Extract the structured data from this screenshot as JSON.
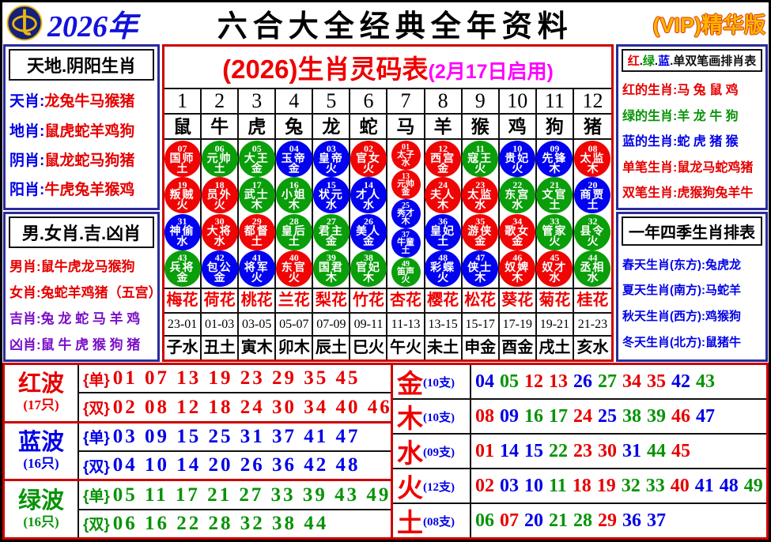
{
  "colors": {
    "red": "#e60000",
    "green": "#079307",
    "blue": "#0000e6",
    "purple": "#7a10c8",
    "magenta": "#ff00ff",
    "black": "#111111",
    "ball_red": "#f00505",
    "ball_green": "#0a9e0a",
    "ball_blue": "#0202f0",
    "navy_border": "#2b2b9b",
    "red_border": "#cc0000",
    "vip_gold": "#ffb400"
  },
  "header": {
    "year": "2026年",
    "title": "六合大全经典全年资料",
    "vip": "(VIP)精华版",
    "logo": "coin-compass-logo"
  },
  "left_panel": {
    "section1": {
      "title": "天地.阴阳生肖",
      "rows": [
        {
          "label": "天肖",
          "value": "龙兔牛马猴猪"
        },
        {
          "label": "地肖",
          "value": "鼠虎蛇羊鸡狗"
        },
        {
          "label": "阴肖",
          "value": "鼠龙蛇马狗猪"
        },
        {
          "label": "阳肖",
          "value": "牛虎兔羊猴鸡"
        }
      ]
    },
    "section2": {
      "title": "男.女肖.吉.凶肖",
      "rows": [
        {
          "label": "男肖",
          "value": "鼠牛虎龙马猴狗",
          "color": "red"
        },
        {
          "label": "女肖",
          "value": "兔蛇羊鸡猪（五宫）",
          "color": "red"
        },
        {
          "label": "吉肖",
          "value": "兔 龙 蛇 马 羊 鸡",
          "color": "purple"
        },
        {
          "label": "凶肖",
          "value": "鼠 牛 虎 猴 狗 猪",
          "color": "purple"
        }
      ]
    }
  },
  "main_table": {
    "title": "(2026)生肖灵码表",
    "subtitle": "(2月17日启用)",
    "columns": [
      {
        "num": "1",
        "zodiac": "鼠",
        "flower": "梅花",
        "time": "23-01",
        "branch": "子水",
        "circles": [
          {
            "n": "07",
            "t": "国师",
            "e": "土",
            "c": "red"
          },
          {
            "n": "19",
            "t": "叛贼",
            "e": "火",
            "c": "red"
          },
          {
            "n": "31",
            "t": "神偷",
            "e": "水",
            "c": "blue"
          },
          {
            "n": "43",
            "t": "兵将",
            "e": "金",
            "c": "green"
          }
        ]
      },
      {
        "num": "2",
        "zodiac": "牛",
        "flower": "荷花",
        "time": "01-03",
        "branch": "丑土",
        "circles": [
          {
            "n": "06",
            "t": "元帅",
            "e": "土",
            "c": "green"
          },
          {
            "n": "18",
            "t": "员外",
            "e": "火",
            "c": "red"
          },
          {
            "n": "30",
            "t": "大将",
            "e": "水",
            "c": "red"
          },
          {
            "n": "42",
            "t": "包公",
            "e": "金",
            "c": "blue"
          }
        ]
      },
      {
        "num": "3",
        "zodiac": "虎",
        "flower": "桃花",
        "time": "03-05",
        "branch": "寅木",
        "circles": [
          {
            "n": "05",
            "t": "大王",
            "e": "金",
            "c": "green"
          },
          {
            "n": "17",
            "t": "武士",
            "e": "木",
            "c": "green"
          },
          {
            "n": "29",
            "t": "都督",
            "e": "土",
            "c": "red"
          },
          {
            "n": "41",
            "t": "将军",
            "e": "火",
            "c": "blue"
          }
        ]
      },
      {
        "num": "4",
        "zodiac": "兔",
        "flower": "兰花",
        "time": "05-07",
        "branch": "卯木",
        "circles": [
          {
            "n": "04",
            "t": "玉帝",
            "e": "金",
            "c": "blue"
          },
          {
            "n": "16",
            "t": "小姐",
            "e": "木",
            "c": "green"
          },
          {
            "n": "28",
            "t": "皇后",
            "e": "土",
            "c": "green"
          },
          {
            "n": "40",
            "t": "东官",
            "e": "火",
            "c": "red"
          }
        ]
      },
      {
        "num": "5",
        "zodiac": "龙",
        "flower": "梨花",
        "time": "07-09",
        "branch": "辰土",
        "circles": [
          {
            "n": "03",
            "t": "皇帝",
            "e": "火",
            "c": "blue"
          },
          {
            "n": "15",
            "t": "状元",
            "e": "水",
            "c": "blue"
          },
          {
            "n": "27",
            "t": "君主",
            "e": "金",
            "c": "green"
          },
          {
            "n": "39",
            "t": "国君",
            "e": "木",
            "c": "green"
          }
        ]
      },
      {
        "num": "6",
        "zodiac": "蛇",
        "flower": "竹花",
        "time": "09-11",
        "branch": "巳火",
        "circles": [
          {
            "n": "02",
            "t": "官女",
            "e": "火",
            "c": "red"
          },
          {
            "n": "14",
            "t": "才人",
            "e": "水",
            "c": "blue"
          },
          {
            "n": "26",
            "t": "美人",
            "e": "金",
            "c": "blue"
          },
          {
            "n": "38",
            "t": "官妃",
            "e": "木",
            "c": "green"
          }
        ]
      },
      {
        "num": "7",
        "zodiac": "马",
        "flower": "杏花",
        "time": "11-13",
        "branch": "午火",
        "small": true,
        "circles": [
          {
            "n": "01",
            "t": "太子",
            "e": "水",
            "c": "red"
          },
          {
            "n": "13",
            "t": "元帅",
            "e": "金",
            "c": "red"
          },
          {
            "n": "25",
            "t": "秀才",
            "e": "木",
            "c": "blue"
          },
          {
            "n": "37",
            "t": "牛童",
            "e": "土",
            "c": "blue"
          },
          {
            "n": "49",
            "t": "笛声",
            "e": "火",
            "c": "green"
          }
        ]
      },
      {
        "num": "8",
        "zodiac": "羊",
        "flower": "樱花",
        "time": "13-15",
        "branch": "未土",
        "circles": [
          {
            "n": "12",
            "t": "西宫",
            "e": "金",
            "c": "red"
          },
          {
            "n": "24",
            "t": "夫人",
            "e": "木",
            "c": "red"
          },
          {
            "n": "36",
            "t": "皇妃",
            "e": "土",
            "c": "blue"
          },
          {
            "n": "48",
            "t": "彩蝶",
            "e": "火",
            "c": "blue"
          }
        ]
      },
      {
        "num": "9",
        "zodiac": "猴",
        "flower": "松花",
        "time": "15-17",
        "branch": "申金",
        "circles": [
          {
            "n": "11",
            "t": "寇王",
            "e": "火",
            "c": "green"
          },
          {
            "n": "23",
            "t": "太监",
            "e": "水",
            "c": "red"
          },
          {
            "n": "35",
            "t": "游侠",
            "e": "金",
            "c": "red"
          },
          {
            "n": "47",
            "t": "侠士",
            "e": "木",
            "c": "blue"
          }
        ]
      },
      {
        "num": "10",
        "zodiac": "鸡",
        "flower": "葵花",
        "time": "17-19",
        "branch": "酉金",
        "circles": [
          {
            "n": "10",
            "t": "贵妃",
            "e": "火",
            "c": "blue"
          },
          {
            "n": "22",
            "t": "东宫",
            "e": "水",
            "c": "green"
          },
          {
            "n": "34",
            "t": "歌女",
            "e": "金",
            "c": "red"
          },
          {
            "n": "46",
            "t": "奴婢",
            "e": "木",
            "c": "red"
          }
        ]
      },
      {
        "num": "11",
        "zodiac": "狗",
        "flower": "菊花",
        "time": "19-21",
        "branch": "戌土",
        "circles": [
          {
            "n": "09",
            "t": "先锋",
            "e": "木",
            "c": "blue"
          },
          {
            "n": "21",
            "t": "文官",
            "e": "土",
            "c": "green"
          },
          {
            "n": "33",
            "t": "管家",
            "e": "火",
            "c": "green"
          },
          {
            "n": "45",
            "t": "奴才",
            "e": "水",
            "c": "red"
          }
        ]
      },
      {
        "num": "12",
        "zodiac": "猪",
        "flower": "桂花",
        "time": "21-23",
        "branch": "亥水",
        "circles": [
          {
            "n": "08",
            "t": "太监",
            "e": "木",
            "c": "red"
          },
          {
            "n": "20",
            "t": "商贾",
            "e": "土",
            "c": "blue"
          },
          {
            "n": "32",
            "t": "县令",
            "e": "火",
            "c": "green"
          },
          {
            "n": "44",
            "t": "丞相",
            "e": "水",
            "c": "green"
          }
        ]
      }
    ]
  },
  "right_panel": {
    "section1": {
      "title_parts": [
        {
          "t": "红",
          "c": "red"
        },
        {
          "t": ".",
          "c": "black"
        },
        {
          "t": "绿",
          "c": "green"
        },
        {
          "t": ".",
          "c": "black"
        },
        {
          "t": "蓝",
          "c": "blue"
        },
        {
          "t": ".",
          "c": "black"
        },
        {
          "t": "单双笔画排肖表",
          "c": "black"
        }
      ],
      "rows": [
        {
          "label": "红的生肖",
          "value": "马 兔 鼠 鸡",
          "color": "red"
        },
        {
          "label": "绿的生肖",
          "value": "羊 龙 牛 狗",
          "color": "green"
        },
        {
          "label": "蓝的生肖",
          "value": "蛇 虎 猪 猴",
          "color": "blue"
        },
        {
          "label": "单笔生肖",
          "value": "鼠龙马蛇鸡猪",
          "color": "red"
        },
        {
          "label": "双笔生肖",
          "value": "虎猴狗兔羊牛",
          "color": "red"
        }
      ]
    },
    "section2": {
      "title": "一年四季生肖排表",
      "rows": [
        {
          "label": "春天生肖(东方)",
          "value": "兔虎龙",
          "color": "blue"
        },
        {
          "label": "夏天生肖(南方)",
          "value": "马蛇羊",
          "color": "blue"
        },
        {
          "label": "秋天生肖(西方)",
          "value": "鸡猴狗",
          "color": "blue"
        },
        {
          "label": "冬天生肖(北方)",
          "value": "鼠猪牛",
          "color": "blue"
        }
      ]
    }
  },
  "waves": [
    {
      "name": "红波",
      "count": "(17只)",
      "color": "red",
      "rows": [
        {
          "tag": "{单}",
          "nums": "01 07 13 19 23 29 35 45"
        },
        {
          "tag": "{双}",
          "nums": "02 08 12 18 24 30 34 40 46"
        }
      ]
    },
    {
      "name": "蓝波",
      "count": "(16只)",
      "color": "blue",
      "rows": [
        {
          "tag": "{单}",
          "nums": "03 09 15 25 31 37 41 47"
        },
        {
          "tag": "{双}",
          "nums": "04 10 14 20 26 36 42 48"
        }
      ]
    },
    {
      "name": "绿波",
      "count": "(16只)",
      "color": "green",
      "rows": [
        {
          "tag": "{单}",
          "nums": "05 11 17 21 27 33 39 43 49"
        },
        {
          "tag": "{双}",
          "nums": "06 16 22 28 32 38 44"
        }
      ]
    }
  ],
  "elements": [
    {
      "name": "金",
      "count": "(10支)",
      "nums": [
        {
          "v": "04",
          "c": "blue"
        },
        {
          "v": "05",
          "c": "green"
        },
        {
          "v": "12",
          "c": "red"
        },
        {
          "v": "13",
          "c": "red"
        },
        {
          "v": "26",
          "c": "blue"
        },
        {
          "v": "27",
          "c": "green"
        },
        {
          "v": "34",
          "c": "red"
        },
        {
          "v": "35",
          "c": "red"
        },
        {
          "v": "42",
          "c": "blue"
        },
        {
          "v": "43",
          "c": "green"
        }
      ]
    },
    {
      "name": "木",
      "count": "(10支)",
      "nums": [
        {
          "v": "08",
          "c": "red"
        },
        {
          "v": "09",
          "c": "blue"
        },
        {
          "v": "16",
          "c": "green"
        },
        {
          "v": "17",
          "c": "green"
        },
        {
          "v": "24",
          "c": "red"
        },
        {
          "v": "25",
          "c": "blue"
        },
        {
          "v": "38",
          "c": "green"
        },
        {
          "v": "39",
          "c": "green"
        },
        {
          "v": "46",
          "c": "red"
        },
        {
          "v": "47",
          "c": "blue"
        }
      ]
    },
    {
      "name": "水",
      "count": "(09支)",
      "nums": [
        {
          "v": "01",
          "c": "red"
        },
        {
          "v": "14",
          "c": "blue"
        },
        {
          "v": "15",
          "c": "blue"
        },
        {
          "v": "22",
          "c": "green"
        },
        {
          "v": "23",
          "c": "red"
        },
        {
          "v": "30",
          "c": "red"
        },
        {
          "v": "31",
          "c": "blue"
        },
        {
          "v": "44",
          "c": "green"
        },
        {
          "v": "45",
          "c": "red"
        }
      ]
    },
    {
      "name": "火",
      "count": "(12支)",
      "nums": [
        {
          "v": "02",
          "c": "red"
        },
        {
          "v": "03",
          "c": "blue"
        },
        {
          "v": "10",
          "c": "blue"
        },
        {
          "v": "11",
          "c": "green"
        },
        {
          "v": "18",
          "c": "red"
        },
        {
          "v": "19",
          "c": "red"
        },
        {
          "v": "32",
          "c": "green"
        },
        {
          "v": "33",
          "c": "green"
        },
        {
          "v": "40",
          "c": "red"
        },
        {
          "v": "41",
          "c": "blue"
        },
        {
          "v": "48",
          "c": "blue"
        },
        {
          "v": "49",
          "c": "green"
        }
      ]
    },
    {
      "name": "土",
      "count": "(08支)",
      "nums": [
        {
          "v": "06",
          "c": "green"
        },
        {
          "v": "07",
          "c": "red"
        },
        {
          "v": "20",
          "c": "blue"
        },
        {
          "v": "21",
          "c": "green"
        },
        {
          "v": "28",
          "c": "green"
        },
        {
          "v": "29",
          "c": "red"
        },
        {
          "v": "36",
          "c": "blue"
        },
        {
          "v": "37",
          "c": "blue"
        }
      ]
    }
  ]
}
